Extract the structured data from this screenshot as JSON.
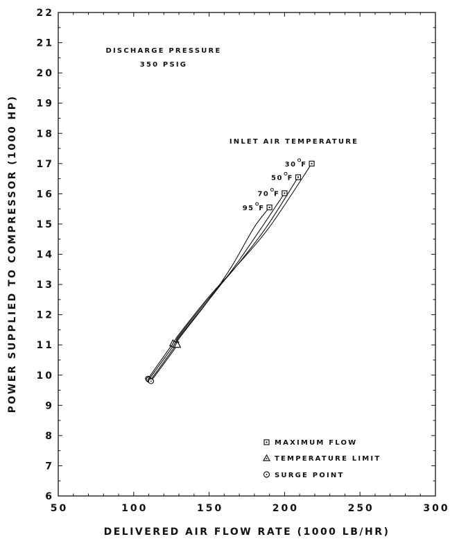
{
  "chart_data": {
    "type": "line",
    "title": "",
    "xlabel": "DELIVERED AIR FLOW RATE (1000 LB/HR)",
    "ylabel": "POWER SUPPLIED TO COMPRESSOR (1000 HP)",
    "xlim": [
      50,
      300
    ],
    "ylim": [
      6,
      22
    ],
    "xticks": [
      "50",
      "100",
      "150",
      "200",
      "250",
      "300"
    ],
    "yticks": [
      "6",
      "7",
      "8",
      "9",
      "10",
      "11",
      "12",
      "13",
      "14",
      "15",
      "16",
      "17",
      "18",
      "19",
      "20",
      "21",
      "22"
    ],
    "grid": false,
    "annotations": {
      "pressure_line1": "DISCHARGE PRESSURE",
      "pressure_line2": "350 PSIG",
      "inlet_title": "INLET AIR TEMPERATURE"
    },
    "series": [
      {
        "name": "30°F",
        "label_num": "30",
        "label_unit": "F",
        "x": [
          109.5,
          126,
          130,
          150,
          168,
          190,
          218
        ],
        "y": [
          9.88,
          11.05,
          11.35,
          12.6,
          13.6,
          14.9,
          17.0
        ]
      },
      {
        "name": "50°F",
        "label_num": "50",
        "label_unit": "F",
        "x": [
          110,
          127,
          130,
          150,
          168,
          188,
          209
        ],
        "y": [
          9.85,
          11.02,
          11.3,
          12.55,
          13.6,
          14.9,
          16.55
        ]
      },
      {
        "name": "70°F",
        "label_num": "70",
        "label_unit": "F",
        "x": [
          111,
          128,
          130,
          150,
          167,
          185,
          200
        ],
        "y": [
          9.82,
          11.0,
          11.25,
          12.5,
          13.6,
          14.9,
          16.02
        ]
      },
      {
        "name": "95°F",
        "label_num": "95",
        "label_unit": "F",
        "x": [
          111.5,
          129,
          130,
          150,
          165,
          180,
          190
        ],
        "y": [
          9.8,
          11.0,
          11.2,
          12.5,
          13.6,
          14.9,
          15.55
        ]
      }
    ],
    "markers": {
      "maximum_flow": [
        [
          190,
          15.55
        ],
        [
          200,
          16.02
        ],
        [
          209,
          16.55
        ],
        [
          218,
          17.0
        ]
      ],
      "temperature_limit": [
        [
          126,
          11.05
        ],
        [
          127,
          11.02
        ],
        [
          128,
          11.0
        ],
        [
          129,
          11.0
        ]
      ],
      "surge_point": [
        [
          109.5,
          9.88
        ],
        [
          110,
          9.85
        ],
        [
          111,
          9.82
        ],
        [
          111.5,
          9.8
        ]
      ]
    },
    "legend": {
      "position": "bottom-right",
      "items": [
        {
          "marker": "square",
          "label": "MAXIMUM FLOW"
        },
        {
          "marker": "triangle",
          "label": "TEMPERATURE LIMIT"
        },
        {
          "marker": "circle",
          "label": "SURGE POINT"
        }
      ]
    }
  }
}
